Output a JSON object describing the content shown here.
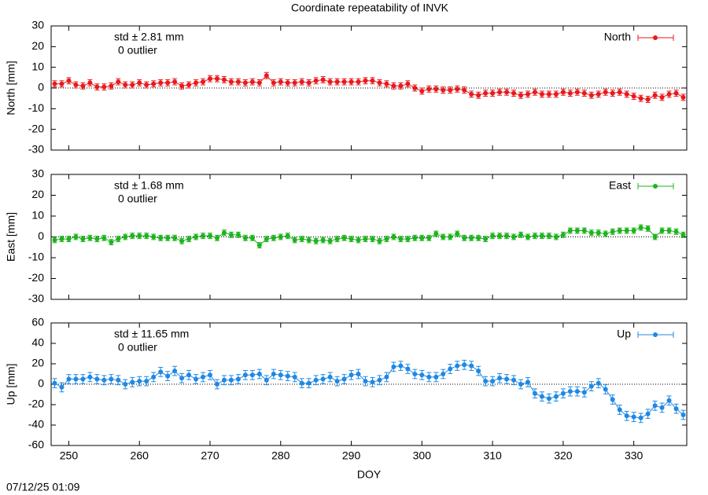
{
  "title": "Coordinate repeatability of INVK",
  "timestamp": "07/12/25 01:09",
  "chart_data": [
    {
      "type": "line",
      "ylabel": "North [mm]",
      "annotations": [
        "std ± 2.81 mm",
        "0 outlier"
      ],
      "x": [
        248,
        249,
        250,
        251,
        252,
        253,
        254,
        255,
        256,
        257,
        258,
        259,
        260,
        261,
        262,
        263,
        264,
        265,
        266,
        267,
        268,
        269,
        270,
        271,
        272,
        273,
        274,
        275,
        276,
        277,
        278,
        279,
        280,
        281,
        282,
        283,
        284,
        285,
        286,
        287,
        288,
        289,
        290,
        291,
        292,
        293,
        294,
        295,
        296,
        297,
        298,
        299,
        300,
        301,
        302,
        303,
        304,
        305,
        306,
        307,
        308,
        309,
        310,
        311,
        312,
        313,
        314,
        315,
        316,
        317,
        318,
        319,
        320,
        321,
        322,
        323,
        324,
        325,
        326,
        327,
        328,
        329,
        330,
        331,
        332,
        333,
        334,
        335,
        336,
        337
      ],
      "series": [
        {
          "name": "North",
          "color": "#e8191c",
          "error": 1.5,
          "values": [
            2,
            2,
            3.5,
            1.5,
            1,
            2.5,
            0.5,
            0.5,
            1,
            3,
            1.5,
            1.5,
            2.5,
            1.5,
            2,
            2.5,
            2.5,
            3,
            1,
            1.5,
            2.5,
            3,
            4.5,
            4.5,
            4,
            3,
            3,
            2.5,
            3,
            2.5,
            6,
            2.5,
            3,
            2.5,
            2.5,
            3,
            2.5,
            3.5,
            4,
            3,
            3,
            3,
            3,
            3,
            3.5,
            3.5,
            2.5,
            2,
            1,
            1,
            2,
            0,
            -1.5,
            -0.5,
            -0.5,
            -1,
            -1,
            -0.5,
            -1,
            -3,
            -3.5,
            -2.5,
            -2.5,
            -2,
            -2,
            -2.5,
            -3.5,
            -3,
            -2,
            -3,
            -3,
            -3,
            -2,
            -2.5,
            -2,
            -2.5,
            -3.5,
            -3,
            -2,
            -2.5,
            -2,
            -3,
            -4,
            -5,
            -5.5,
            -3.5,
            -4.5,
            -3,
            -2.5,
            -4.5
          ]
        }
      ],
      "xlim": [
        247.5,
        337.5
      ],
      "xticks": [
        250,
        260,
        270,
        280,
        290,
        300,
        310,
        320,
        330
      ],
      "ylim": [
        -30,
        30
      ],
      "yticks": [
        -30,
        -20,
        -10,
        0,
        10,
        20,
        30
      ],
      "reference_line": 0,
      "legend": "upper right"
    },
    {
      "type": "line",
      "ylabel": "East [mm]",
      "annotations": [
        "std ± 1.68 mm",
        "0 outlier"
      ],
      "x": [
        248,
        249,
        250,
        251,
        252,
        253,
        254,
        255,
        256,
        257,
        258,
        259,
        260,
        261,
        262,
        263,
        264,
        265,
        266,
        267,
        268,
        269,
        270,
        271,
        272,
        273,
        274,
        275,
        276,
        277,
        278,
        279,
        280,
        281,
        282,
        283,
        284,
        285,
        286,
        287,
        288,
        289,
        290,
        291,
        292,
        293,
        294,
        295,
        296,
        297,
        298,
        299,
        300,
        301,
        302,
        303,
        304,
        305,
        306,
        307,
        308,
        309,
        310,
        311,
        312,
        313,
        314,
        315,
        316,
        317,
        318,
        319,
        320,
        321,
        322,
        323,
        324,
        325,
        326,
        327,
        328,
        329,
        330,
        331,
        332,
        333,
        334,
        335,
        336,
        337
      ],
      "series": [
        {
          "name": "East",
          "color": "#1db31d",
          "error": 1.3,
          "values": [
            -1.5,
            -1,
            -1,
            0,
            -1,
            -0.5,
            -1,
            -0.5,
            -2.5,
            -1,
            0,
            0.5,
            0.5,
            0.5,
            0,
            -0.5,
            -0.5,
            -0.5,
            -2,
            -1,
            0,
            0.5,
            0.5,
            -0.5,
            2,
            1,
            1,
            -0.5,
            -0.5,
            -4,
            -1,
            -0.5,
            0,
            0.5,
            -1.5,
            -1,
            -1.5,
            -2,
            -1.5,
            -2,
            -1,
            -0.5,
            -1,
            -1.5,
            -1,
            -1,
            -2,
            -1,
            0,
            -1,
            -1,
            -0.5,
            -0.5,
            -0.5,
            1.5,
            0,
            0,
            1.5,
            -0.5,
            -0.5,
            -0.5,
            -1,
            0.5,
            0.5,
            0.5,
            0,
            1,
            0,
            0.5,
            0.5,
            0.5,
            0,
            1,
            3,
            3,
            3,
            2,
            2,
            1.5,
            2.5,
            3,
            3,
            3,
            4.5,
            4,
            0,
            3,
            3,
            2.5,
            1
          ]
        }
      ],
      "xlim": [
        247.5,
        337.5
      ],
      "xticks": [
        250,
        260,
        270,
        280,
        290,
        300,
        310,
        320,
        330
      ],
      "ylim": [
        -30,
        30
      ],
      "yticks": [
        -30,
        -20,
        -10,
        0,
        10,
        20,
        30
      ],
      "reference_line": 0,
      "legend": "upper right"
    },
    {
      "type": "line",
      "ylabel": "Up [mm]",
      "xlabel": "DOY",
      "annotations": [
        "std ± 11.65 mm",
        "0 outlier"
      ],
      "x": [
        248,
        249,
        250,
        251,
        252,
        253,
        254,
        255,
        256,
        257,
        258,
        259,
        260,
        261,
        262,
        263,
        264,
        265,
        266,
        267,
        268,
        269,
        270,
        271,
        272,
        273,
        274,
        275,
        276,
        277,
        278,
        279,
        280,
        281,
        282,
        283,
        284,
        285,
        286,
        287,
        288,
        289,
        290,
        291,
        292,
        293,
        294,
        295,
        296,
        297,
        298,
        299,
        300,
        301,
        302,
        303,
        304,
        305,
        306,
        307,
        308,
        309,
        310,
        311,
        312,
        313,
        314,
        315,
        316,
        317,
        318,
        319,
        320,
        321,
        322,
        323,
        324,
        325,
        326,
        327,
        328,
        329,
        330,
        331,
        332,
        333,
        334,
        335,
        336,
        337
      ],
      "series": [
        {
          "name": "Up",
          "color": "#1e88e5",
          "error": 4.5,
          "values": [
            1,
            -3,
            5,
            5,
            5,
            7,
            5,
            4,
            5,
            4,
            0,
            2,
            3,
            3,
            7,
            12,
            8,
            13,
            6,
            9,
            5,
            7,
            9,
            0,
            4,
            4,
            5,
            9,
            9,
            10,
            4,
            10,
            9,
            8,
            7,
            1,
            1,
            4,
            5,
            7,
            3,
            5,
            9,
            10,
            3,
            2,
            4,
            7,
            17,
            18,
            15,
            10,
            9,
            7,
            7,
            10,
            15,
            18,
            19,
            18,
            13,
            3,
            3,
            6,
            5,
            4,
            0,
            2,
            -9,
            -12,
            -14,
            -12,
            -9,
            -7,
            -7,
            -8,
            -2,
            1,
            -5,
            -15,
            -25,
            -31,
            -32,
            -33,
            -29,
            -21,
            -23,
            -16,
            -24,
            -30
          ]
        }
      ],
      "xlim": [
        247.5,
        337.5
      ],
      "xticks": [
        250,
        260,
        270,
        280,
        290,
        300,
        310,
        320,
        330
      ],
      "ylim": [
        -60,
        60
      ],
      "yticks": [
        -60,
        -40,
        -20,
        0,
        20,
        40,
        60
      ],
      "reference_line": 0,
      "legend": "upper right"
    }
  ]
}
